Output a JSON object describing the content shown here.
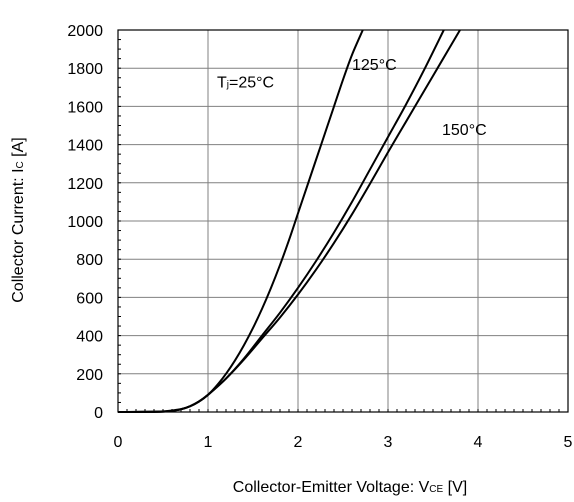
{
  "chart_data": {
    "type": "line",
    "xlabel": "Collector-Emitter Voltage: V",
    "xlabel_sub": "CE",
    "xlabel_unit": " [V]",
    "ylabel": "Collector Current: I",
    "ylabel_sub": "C",
    "ylabel_unit": " [A]",
    "xlim": [
      0,
      5
    ],
    "ylim": [
      0,
      2000
    ],
    "xticks": [
      0,
      1,
      2,
      3,
      4,
      5
    ],
    "yticks": [
      0,
      200,
      400,
      600,
      800,
      1000,
      1200,
      1400,
      1600,
      1800,
      2000
    ],
    "grid": true,
    "annotations": [
      {
        "text_main": "T",
        "text_sub": "j",
        "text_rest": "=25°C",
        "x": 1.1,
        "y": 1700
      },
      {
        "text_main": "125°C",
        "text_sub": "",
        "text_rest": "",
        "x": 2.6,
        "y": 1790
      },
      {
        "text_main": "150°C",
        "text_sub": "",
        "text_rest": "",
        "x": 3.6,
        "y": 1450
      }
    ],
    "series": [
      {
        "x": [
          0,
          0.3,
          0.5,
          0.6,
          0.7,
          0.8,
          0.9,
          1.0,
          1.1,
          1.2,
          1.3,
          1.4,
          1.5,
          1.6,
          1.7,
          1.8,
          1.9,
          2.0,
          2.1,
          2.2,
          2.3,
          2.4,
          2.5,
          2.6,
          2.72
        ],
        "y": [
          0,
          1,
          3,
          8,
          15,
          30,
          55,
          90,
          140,
          200,
          270,
          350,
          440,
          540,
          650,
          770,
          900,
          1040,
          1180,
          1320,
          1460,
          1600,
          1740,
          1870,
          2000
        ]
      },
      {
        "x": [
          0,
          0.3,
          0.5,
          0.6,
          0.7,
          0.8,
          0.9,
          1.0,
          1.2,
          1.4,
          1.6,
          1.8,
          2.0,
          2.2,
          2.4,
          2.6,
          2.8,
          3.0,
          3.2,
          3.4,
          3.62
        ],
        "y": [
          0,
          0.5,
          2,
          6,
          14,
          30,
          55,
          90,
          175,
          280,
          400,
          520,
          650,
          790,
          940,
          1100,
          1270,
          1440,
          1610,
          1790,
          2000
        ]
      },
      {
        "x": [
          0,
          0.3,
          0.5,
          0.6,
          0.7,
          0.8,
          0.9,
          1.0,
          1.2,
          1.4,
          1.6,
          1.8,
          2.0,
          2.2,
          2.4,
          2.6,
          2.8,
          3.0,
          3.2,
          3.4,
          3.6,
          3.8
        ],
        "y": [
          0,
          0.5,
          2,
          6,
          14,
          30,
          55,
          90,
          175,
          275,
          385,
          495,
          615,
          745,
          885,
          1035,
          1195,
          1360,
          1520,
          1680,
          1840,
          2000
        ]
      }
    ]
  }
}
